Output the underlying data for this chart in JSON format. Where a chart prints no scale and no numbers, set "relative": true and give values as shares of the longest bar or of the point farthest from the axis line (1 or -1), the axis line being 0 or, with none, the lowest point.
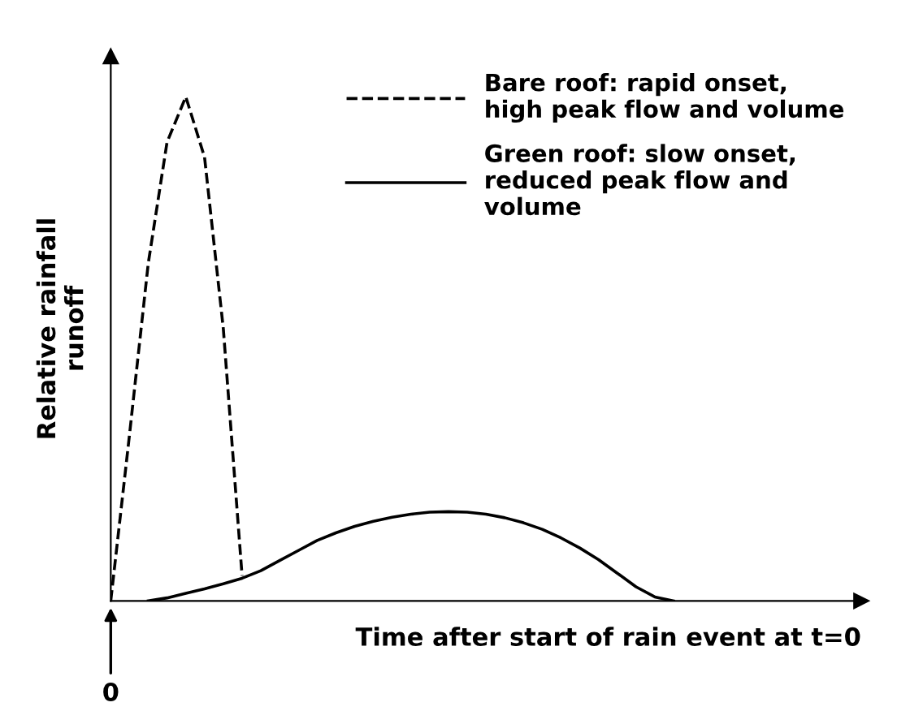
{
  "chart_data": {
    "type": "line",
    "relative": true,
    "xlabel": "Time after start of rain event at t=0",
    "ylabel": "Relative rainfall\nrunoff",
    "annotations": [
      "0"
    ],
    "legend": "top right",
    "marker": "none",
    "categories": [
      null,
      null,
      null,
      null,
      null,
      null,
      null,
      null,
      null,
      null,
      null,
      null,
      null,
      null,
      null,
      null,
      null,
      null,
      null,
      null,
      null,
      null,
      null,
      null,
      null,
      null,
      null,
      null,
      null,
      null,
      null,
      null,
      null,
      null,
      null,
      null,
      null,
      null,
      null,
      null,
      null
    ],
    "series": [
      {
        "name": "Bare roof: rapid onset,\nhigh peak flow and volume",
        "color": "#000000",
        "line_style": "dashed",
        "values": [
          0,
          0.33,
          0.67,
          0.91,
          1,
          0.88,
          0.54,
          0.05,
          null,
          null,
          null,
          null,
          null,
          null,
          null,
          null,
          null,
          null,
          null,
          null,
          null,
          null,
          null,
          null,
          null,
          null,
          null,
          null,
          null,
          null,
          null,
          null,
          null,
          null,
          null,
          null,
          null,
          null,
          null,
          null,
          null
        ]
      },
      {
        "name": "Green roof: slow onset,\nreduced peak flow and\nvolume",
        "color": "#000000",
        "line_style": "solid",
        "values": [
          null,
          null,
          0,
          0.006,
          0.015,
          0.024,
          0.034,
          0.045,
          0.06,
          0.08,
          0.1,
          0.12,
          0.135,
          0.148,
          0.158,
          0.166,
          0.172,
          0.176,
          0.177,
          0.176,
          0.172,
          0.165,
          0.155,
          0.142,
          0.125,
          0.105,
          0.082,
          0.055,
          0.028,
          0.008,
          0,
          null,
          null,
          null,
          null,
          null,
          null,
          null,
          null,
          null,
          null
        ]
      }
    ]
  }
}
